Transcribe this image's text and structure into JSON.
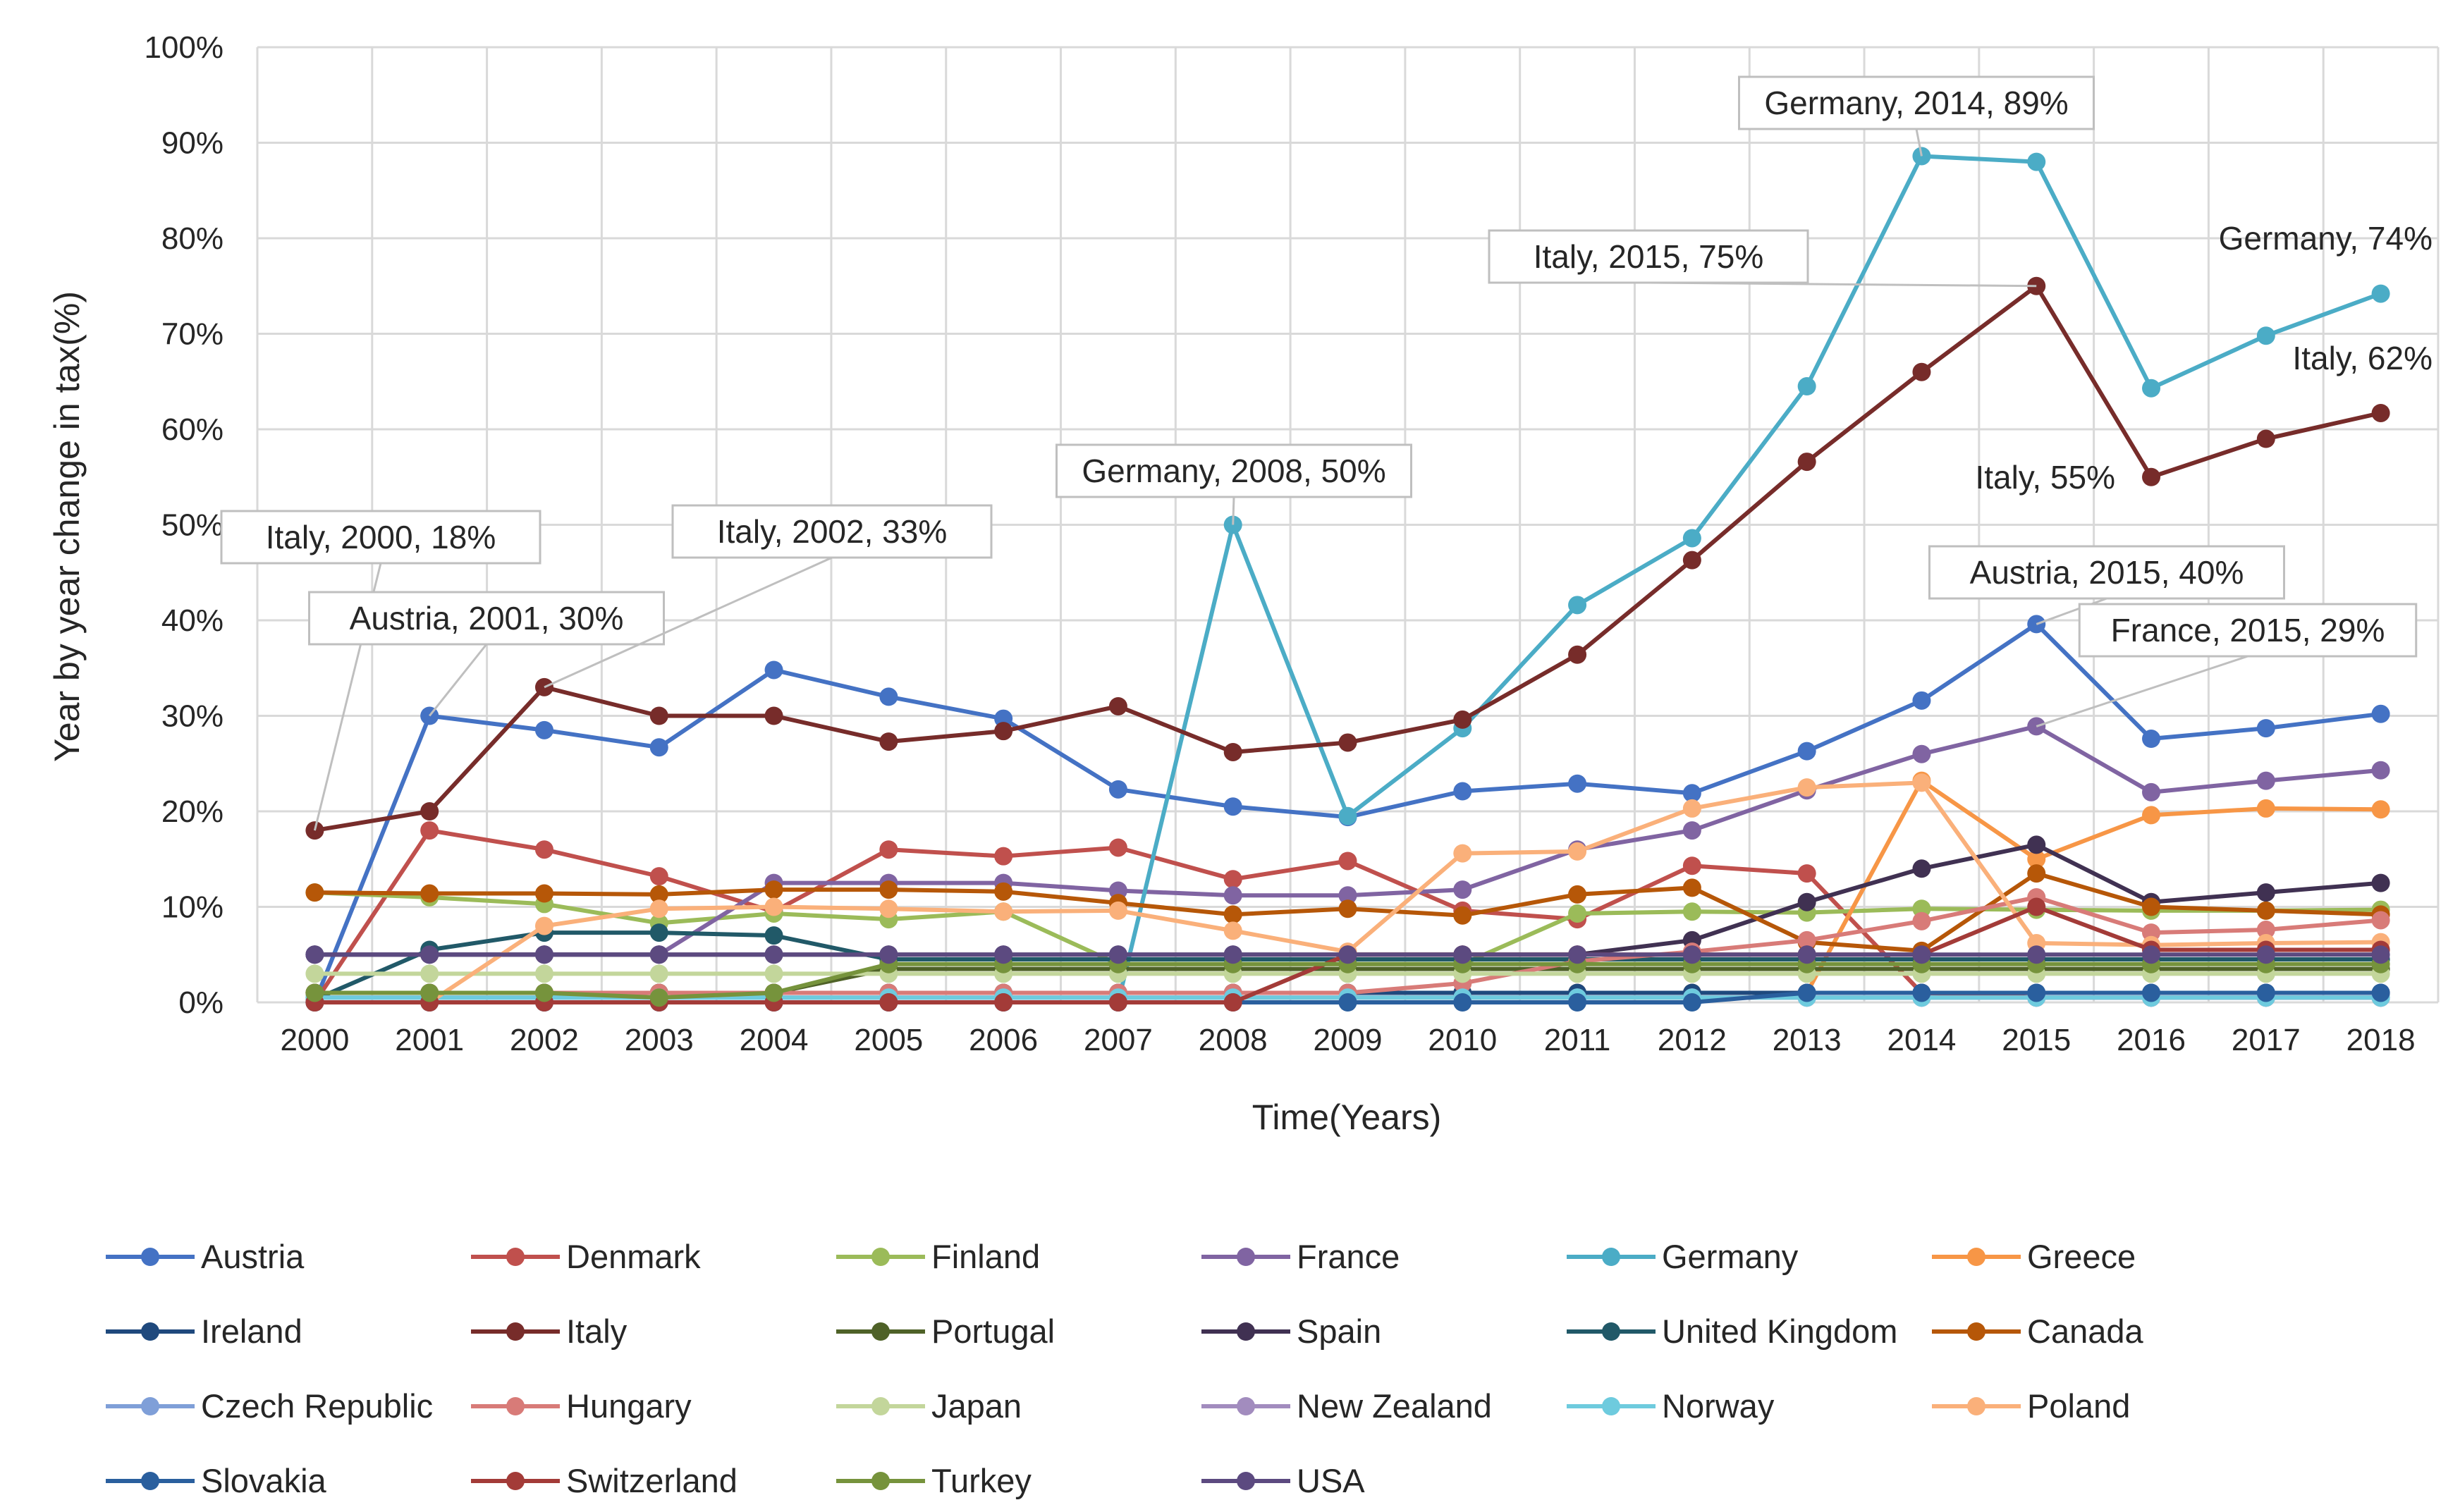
{
  "chart_data": {
    "type": "line",
    "title": "",
    "xlabel": "Time(Years)",
    "ylabel": "Year by year change in tax(%)",
    "ylim": [
      0,
      100
    ],
    "y_ticks": [
      "0%",
      "10%",
      "20%",
      "30%",
      "40%",
      "50%",
      "60%",
      "70%",
      "80%",
      "90%",
      "100%"
    ],
    "grid": true,
    "legend_position": "bottom",
    "x": [
      "2000",
      "2001",
      "2002",
      "2003",
      "2004",
      "2005",
      "2006",
      "2007",
      "2008",
      "2009",
      "2010",
      "2011",
      "2012",
      "2013",
      "2014",
      "2015",
      "2016",
      "2017",
      "2018"
    ],
    "series": [
      {
        "name": "Austria",
        "color": "#4472c4",
        "values": [
          0,
          30,
          28.5,
          26.7,
          34.8,
          32,
          29.7,
          22.3,
          20.5,
          19.4,
          22.1,
          22.9,
          21.9,
          26.3,
          31.6,
          39.6,
          27.6,
          28.7,
          30.2
        ]
      },
      {
        "name": "Denmark",
        "color": "#c0504d",
        "values": [
          0,
          18,
          16,
          13.2,
          9.5,
          16,
          15.3,
          16.2,
          12.9,
          14.8,
          9.6,
          8.7,
          14.3,
          13.5,
          1,
          0.5,
          0.5,
          0.5,
          0.5
        ]
      },
      {
        "name": "Finland",
        "color": "#9bbb59",
        "values": [
          11.5,
          11,
          10.3,
          8.3,
          9.3,
          8.7,
          9.5,
          4,
          4,
          4,
          4,
          9.3,
          9.5,
          9.4,
          9.8,
          9.7,
          9.6,
          9.6,
          9.7
        ]
      },
      {
        "name": "France",
        "color": "#8064a2",
        "values": [
          5,
          5,
          5,
          5,
          12.5,
          12.5,
          12.5,
          11.7,
          11.2,
          11.2,
          11.8,
          16,
          18,
          22.2,
          26,
          28.9,
          22,
          23.2,
          24.3
        ]
      },
      {
        "name": "Germany",
        "color": "#4bacc6",
        "values": [
          0,
          0,
          0,
          0,
          0,
          0,
          0,
          0,
          50,
          19.5,
          28.7,
          41.6,
          48.6,
          64.5,
          88.6,
          88,
          64.3,
          69.8,
          74.2
        ]
      },
      {
        "name": "Greece",
        "color": "#f79646",
        "values": [
          1,
          1,
          1,
          1,
          1,
          1,
          1,
          1,
          1,
          1,
          1,
          1,
          1,
          1,
          23.2,
          15,
          19.6,
          20.3,
          20.2
        ]
      },
      {
        "name": "Ireland",
        "color": "#1f497d",
        "values": [
          1,
          1,
          1,
          1,
          1,
          1,
          1,
          1,
          1,
          1,
          1,
          1,
          1,
          1,
          1,
          1,
          1,
          1,
          1
        ]
      },
      {
        "name": "Italy",
        "color": "#772c2a",
        "values": [
          18,
          20,
          33,
          30,
          30,
          27.3,
          28.4,
          31,
          26.2,
          27.2,
          29.6,
          36.4,
          46.3,
          56.6,
          66,
          75,
          55,
          59,
          61.7
        ]
      },
      {
        "name": "Portugal",
        "color": "#4f6228",
        "values": [
          1,
          1,
          1,
          1,
          1,
          3.5,
          3.5,
          3.5,
          3.5,
          3.5,
          3.5,
          3.5,
          3.5,
          3.5,
          3.5,
          3.5,
          3.5,
          3.5,
          3.5
        ]
      },
      {
        "name": "Spain",
        "color": "#403152",
        "values": [
          5,
          5,
          5,
          5,
          5,
          5,
          5,
          5,
          5,
          5,
          5,
          5,
          6.5,
          10.5,
          14,
          16.5,
          10.5,
          11.5,
          12.5
        ]
      },
      {
        "name": "United Kingdom",
        "color": "#215968",
        "values": [
          0.3,
          5.5,
          7.3,
          7.3,
          7,
          4.5,
          4.5,
          4.5,
          4.5,
          4.5,
          4.5,
          4.5,
          4.5,
          4.5,
          4.5,
          4.5,
          4.5,
          4.5,
          4.5
        ]
      },
      {
        "name": "Canada",
        "color": "#b65708",
        "values": [
          11.5,
          11.4,
          11.4,
          11.3,
          11.8,
          11.8,
          11.6,
          10.4,
          9.2,
          9.8,
          9.1,
          11.3,
          12,
          6.3,
          5.4,
          13.5,
          10,
          9.6,
          9.2
        ]
      },
      {
        "name": "Czech Republic",
        "color": "#7f9fd8",
        "values": [
          0.5,
          0.5,
          0.5,
          0.5,
          0.5,
          0.5,
          0.5,
          0.5,
          0.5,
          0.5,
          0.5,
          0.5,
          0.5,
          0.5,
          0.5,
          0.5,
          0.5,
          0.5,
          0.5
        ]
      },
      {
        "name": "Hungary",
        "color": "#d87b78",
        "values": [
          1,
          1,
          1,
          1,
          1,
          1,
          1,
          1,
          1,
          1,
          2,
          4.3,
          5.3,
          6.5,
          8.5,
          11,
          7.3,
          7.6,
          8.6
        ]
      },
      {
        "name": "Japan",
        "color": "#c3d69b",
        "values": [
          3,
          3,
          3,
          3,
          3,
          3,
          3,
          3,
          3,
          3,
          3,
          3,
          3,
          3,
          3,
          3,
          3,
          3,
          3
        ]
      },
      {
        "name": "New Zealand",
        "color": "#a28cbe",
        "values": [
          0.5,
          0.5,
          0.5,
          0.5,
          0.5,
          0.5,
          0.5,
          0.5,
          0.5,
          0.5,
          0.5,
          0.5,
          0.5,
          0.5,
          0.5,
          0.5,
          0.5,
          0.5,
          0.5
        ]
      },
      {
        "name": "Norway",
        "color": "#6ecbde",
        "values": [
          0.5,
          0.5,
          0.5,
          0.5,
          0.5,
          0.5,
          0.5,
          0.5,
          0.5,
          0.5,
          0.5,
          0.5,
          0.5,
          0.5,
          0.5,
          0.5,
          0.5,
          0.5,
          0.5
        ]
      },
      {
        "name": "Poland",
        "color": "#fab07a",
        "values": [
          0,
          0,
          8,
          9.8,
          10,
          9.8,
          9.5,
          9.6,
          7.5,
          5.3,
          15.6,
          15.8,
          20.3,
          22.5,
          23,
          6.2,
          6,
          6.2,
          6.3
        ]
      },
      {
        "name": "Slovakia",
        "color": "#2a5f9e",
        "values": [
          0,
          0,
          0,
          0,
          0,
          0,
          0,
          0,
          0,
          0,
          0,
          0,
          0,
          1,
          1,
          1,
          1,
          1,
          1
        ]
      },
      {
        "name": "Switzerland",
        "color": "#a33b38",
        "values": [
          0,
          0,
          0,
          0,
          0,
          0,
          0,
          0,
          0,
          5,
          5,
          5,
          5,
          5,
          5,
          10,
          5.5,
          5.5,
          5.5
        ]
      },
      {
        "name": "Turkey",
        "color": "#76933c",
        "values": [
          1,
          1,
          1,
          0.5,
          1,
          4,
          4,
          4,
          4,
          4,
          4,
          4,
          4,
          4,
          4,
          4,
          4,
          4,
          4
        ]
      },
      {
        "name": "USA",
        "color": "#5c4a80",
        "values": [
          5,
          5,
          5,
          5,
          5,
          5,
          5,
          5,
          5,
          5,
          5,
          5,
          5,
          5,
          5,
          5,
          5,
          5,
          5
        ]
      }
    ],
    "annotations": [
      {
        "text": "Italy, 2000, 18%",
        "series": "Italy",
        "x": "2000",
        "y": 18,
        "boxed": true
      },
      {
        "text": "Austria, 2001, 30%",
        "series": "Austria",
        "x": "2001",
        "y": 30,
        "boxed": true
      },
      {
        "text": "Italy, 2002, 33%",
        "series": "Italy",
        "x": "2002",
        "y": 33,
        "boxed": true
      },
      {
        "text": "Germany, 2008, 50%",
        "series": "Germany",
        "x": "2008",
        "y": 50,
        "boxed": true
      },
      {
        "text": "Germany, 2014, 89%",
        "series": "Germany",
        "x": "2014",
        "y": 89,
        "boxed": true
      },
      {
        "text": "Italy, 2015, 75%",
        "series": "Italy",
        "x": "2015",
        "y": 75,
        "boxed": true
      },
      {
        "text": "Austria, 2015, 40%",
        "series": "Austria",
        "x": "2015",
        "y": 40,
        "boxed": true
      },
      {
        "text": "France, 2015, 29%",
        "series": "France",
        "x": "2015",
        "y": 29,
        "boxed": true
      },
      {
        "text": "Germany, 74%",
        "series": "Germany",
        "x": "2018",
        "y": 74,
        "boxed": false
      },
      {
        "text": "Italy, 62%",
        "series": "Italy",
        "x": "2018",
        "y": 62,
        "boxed": false
      },
      {
        "text": "Italy, 55%",
        "series": "Italy",
        "x": "2016",
        "y": 55,
        "boxed": false
      }
    ]
  }
}
